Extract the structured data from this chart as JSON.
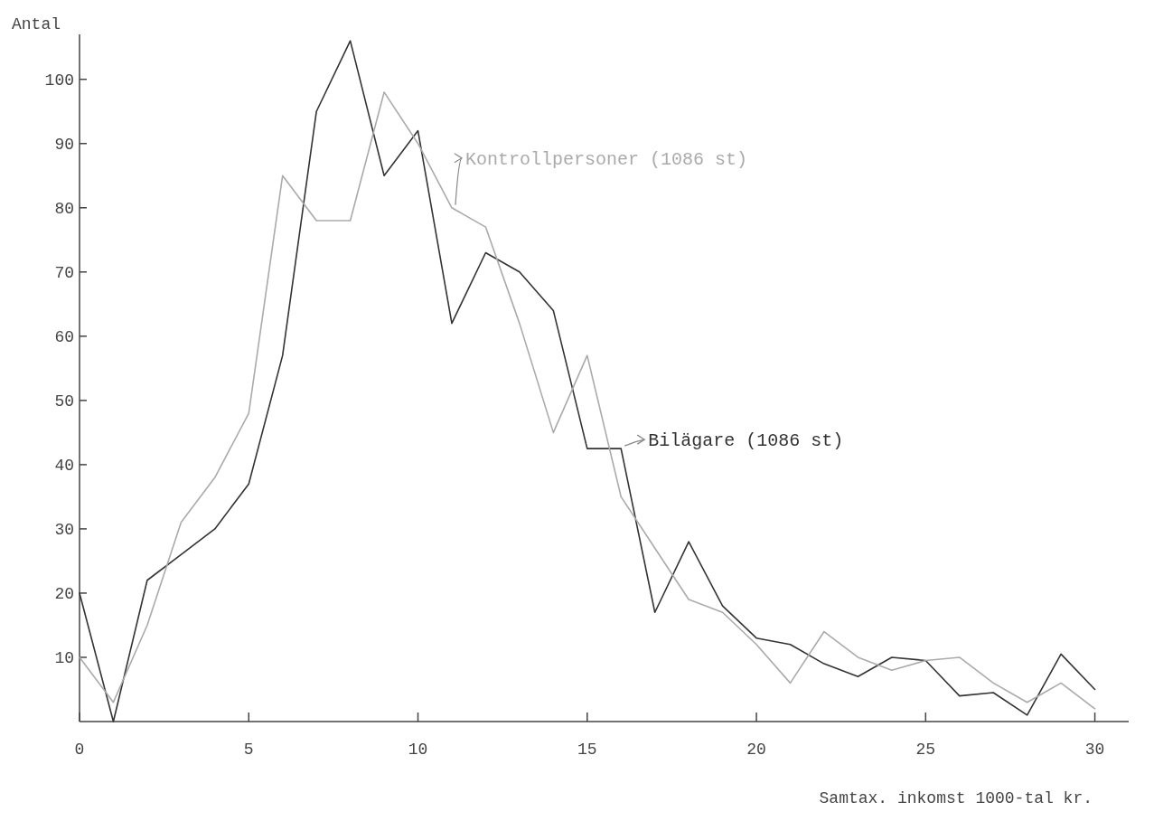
{
  "chart_data": {
    "type": "line",
    "xlabel": "Samtax. inkomst 1000-tal kr.",
    "ylabel": "Antal",
    "x": [
      0,
      1,
      2,
      3,
      4,
      5,
      6,
      7,
      8,
      9,
      10,
      11,
      12,
      13,
      14,
      15,
      16,
      17,
      18,
      19,
      20,
      21,
      22,
      23,
      24,
      25,
      26,
      27,
      28,
      29,
      30
    ],
    "series": [
      {
        "name": "Bilägare (1086 st)",
        "color": "#333333",
        "values": [
          20,
          0,
          22,
          26,
          30,
          37,
          57,
          95,
          106,
          85,
          92,
          62,
          73,
          70,
          64,
          42.5,
          42.5,
          17,
          28,
          18,
          13,
          12,
          9,
          7,
          10,
          9.5,
          4,
          4.5,
          1,
          10.5,
          5
        ]
      },
      {
        "name": "Kontrollpersoner (1086 st)",
        "color": "#aaaaaa",
        "values": [
          10,
          3,
          15,
          31,
          38,
          48,
          85,
          78,
          78,
          98,
          90,
          80,
          77,
          62,
          45,
          57,
          35,
          27,
          19,
          17,
          12,
          6,
          14,
          10,
          8,
          9.5,
          10,
          6,
          3,
          6,
          2
        ]
      }
    ],
    "xlim": [
      0,
      31
    ],
    "xticks": [
      0,
      5,
      10,
      15,
      20,
      25,
      30
    ],
    "ylim": [
      0,
      107
    ],
    "yticks": [
      10,
      20,
      30,
      40,
      50,
      60,
      70,
      80,
      90,
      100
    ],
    "grid": false,
    "legend": false,
    "marker": "none",
    "line_style": "solid"
  }
}
